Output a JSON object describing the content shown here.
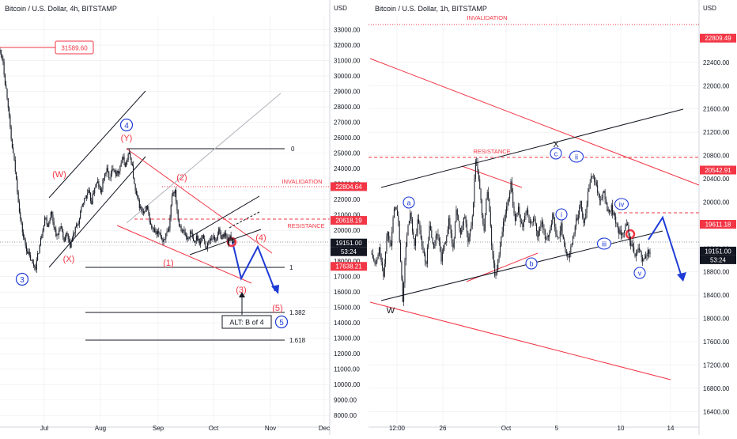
{
  "chart_data": [
    {
      "type": "candlestick",
      "title": "Bitcoin / U.S. Dollar, 4h, BITSTAMP",
      "axis_unit": "USD",
      "x_ticks": [
        "Jul",
        "Aug",
        "Sep",
        "Oct",
        "Nov",
        "Dec"
      ],
      "y_ticks": [
        "33000.00",
        "32000.00",
        "31000.00",
        "30000.00",
        "29000.00",
        "28000.00",
        "27000.00",
        "26000.00",
        "25000.00",
        "24000.00",
        "23000.00",
        "22000.00",
        "21000.00",
        "20000.00",
        "19000.00",
        "18000.00",
        "17000.00",
        "16000.00",
        "15000.00",
        "14000.00",
        "13000.00",
        "12000.00",
        "11000.00",
        "10000.00",
        "9000.00",
        "8000.00"
      ],
      "ylim": [
        7500,
        33900
      ],
      "price_path": [
        [
          0,
          31600
        ],
        [
          2,
          31000
        ],
        [
          3,
          29800
        ],
        [
          5,
          28400
        ],
        [
          7,
          26000
        ],
        [
          9,
          24600
        ],
        [
          11,
          22800
        ],
        [
          13,
          20800
        ],
        [
          15,
          19600
        ],
        [
          17,
          18800
        ],
        [
          19,
          18300
        ],
        [
          21,
          17800
        ],
        [
          23,
          17640
        ],
        [
          25,
          18700
        ],
        [
          27,
          19800
        ],
        [
          29,
          20900
        ],
        [
          31,
          20300
        ],
        [
          33,
          21200
        ],
        [
          35,
          20200
        ],
        [
          37,
          19500
        ],
        [
          39,
          20400
        ],
        [
          41,
          19200
        ],
        [
          43,
          19800
        ],
        [
          45,
          18900
        ],
        [
          47,
          19600
        ],
        [
          49,
          20200
        ],
        [
          51,
          20600
        ],
        [
          53,
          21700
        ],
        [
          55,
          22100
        ],
        [
          57,
          22500
        ],
        [
          59,
          21800
        ],
        [
          61,
          22800
        ],
        [
          63,
          23100
        ],
        [
          65,
          22400
        ],
        [
          67,
          23500
        ],
        [
          69,
          23900
        ],
        [
          71,
          23300
        ],
        [
          73,
          24200
        ],
        [
          75,
          23600
        ],
        [
          77,
          24000
        ],
        [
          79,
          24700
        ],
        [
          81,
          24200
        ],
        [
          83,
          25000
        ],
        [
          85,
          24400
        ],
        [
          87,
          22600
        ],
        [
          89,
          21900
        ],
        [
          91,
          21300
        ],
        [
          93,
          21000
        ],
        [
          95,
          21600
        ],
        [
          97,
          20300
        ],
        [
          99,
          20000
        ],
        [
          101,
          19700
        ],
        [
          103,
          19900
        ],
        [
          105,
          19300
        ],
        [
          107,
          19700
        ],
        [
          109,
          19900
        ],
        [
          111,
          22400
        ],
        [
          113,
          22600
        ],
        [
          115,
          20600
        ],
        [
          117,
          20100
        ],
        [
          119,
          19800
        ],
        [
          121,
          19400
        ],
        [
          123,
          19900
        ],
        [
          125,
          19100
        ],
        [
          127,
          19600
        ],
        [
          129,
          19200
        ],
        [
          131,
          19700
        ],
        [
          133,
          18800
        ],
        [
          135,
          19400
        ],
        [
          137,
          19600
        ],
        [
          139,
          19300
        ],
        [
          141,
          20000
        ],
        [
          143,
          19500
        ],
        [
          145,
          19800
        ],
        [
          147,
          19300
        ],
        [
          149,
          19600
        ],
        [
          151,
          19151
        ]
      ],
      "price_labels": [
        {
          "text": "22804.64",
          "value": 22804.64,
          "color": "#f23645"
        },
        {
          "text": "20618.19",
          "value": 20618.19,
          "color": "#f23645"
        },
        {
          "text": "19151.00",
          "value": 19151,
          "color": "#131722"
        },
        {
          "text": "53:24",
          "value": 19151,
          "color": "#131722"
        },
        {
          "text": "17638.21",
          "value": 17638.21,
          "color": "#f23645"
        }
      ],
      "annotations": {
        "high_label": "31589.60",
        "invalidation": "INVALIDATION",
        "resistance": "RESISTANCE",
        "fib_0": "0",
        "fib_1": "1",
        "fib_1382": "1.382",
        "fib_1618": "1.618",
        "alt_box": "ALT: B of 4",
        "waves_blue": [
          "3",
          "4",
          "5"
        ],
        "waves_red": [
          "(Y)",
          "(W)",
          "(X)",
          "(2)",
          "(1)",
          "(3)",
          "(4)",
          "(5)"
        ]
      }
    },
    {
      "type": "candlestick",
      "title": "Bitcoin / U.S. Dollar, 1h, BITSTAMP",
      "axis_unit": "USD",
      "x_ticks": [
        "12:00",
        "26",
        "Oct",
        "5",
        "10",
        "14"
      ],
      "y_ticks": [
        "22400.00",
        "22000.00",
        "21600.00",
        "21200.00",
        "20800.00",
        "20400.00",
        "20000.00",
        "19600.00",
        "19200.00",
        "18800.00",
        "18400.00",
        "18000.00",
        "17600.00",
        "17200.00",
        "16800.00",
        "16400.00"
      ],
      "ylim": [
        16200,
        23200
      ],
      "price_path": [
        [
          0,
          19100
        ],
        [
          2,
          18900
        ],
        [
          4,
          19200
        ],
        [
          6,
          18700
        ],
        [
          8,
          19500
        ],
        [
          10,
          19300
        ],
        [
          12,
          20000
        ],
        [
          14,
          19600
        ],
        [
          16,
          18300
        ],
        [
          18,
          19400
        ],
        [
          20,
          19800
        ],
        [
          22,
          19200
        ],
        [
          24,
          19700
        ],
        [
          26,
          19300
        ],
        [
          28,
          18900
        ],
        [
          30,
          19600
        ],
        [
          32,
          19200
        ],
        [
          34,
          19500
        ],
        [
          36,
          19000
        ],
        [
          38,
          19300
        ],
        [
          40,
          19700
        ],
        [
          42,
          19200
        ],
        [
          44,
          19900
        ],
        [
          46,
          19400
        ],
        [
          48,
          19800
        ],
        [
          50,
          19300
        ],
        [
          52,
          19700
        ],
        [
          54,
          20800
        ],
        [
          56,
          20200
        ],
        [
          58,
          19500
        ],
        [
          60,
          20300
        ],
        [
          62,
          19300
        ],
        [
          64,
          18700
        ],
        [
          66,
          19100
        ],
        [
          68,
          19600
        ],
        [
          70,
          19900
        ],
        [
          72,
          20300
        ],
        [
          74,
          19700
        ],
        [
          76,
          19900
        ],
        [
          78,
          19500
        ],
        [
          80,
          19900
        ],
        [
          82,
          19600
        ],
        [
          84,
          19800
        ],
        [
          86,
          19400
        ],
        [
          88,
          19700
        ],
        [
          90,
          19300
        ],
        [
          92,
          19500
        ],
        [
          94,
          19800
        ],
        [
          96,
          19300
        ],
        [
          98,
          19600
        ],
        [
          100,
          19200
        ],
        [
          102,
          19000
        ],
        [
          104,
          19400
        ],
        [
          106,
          19700
        ],
        [
          108,
          20000
        ],
        [
          110,
          19600
        ],
        [
          112,
          20200
        ],
        [
          114,
          20500
        ],
        [
          116,
          20350
        ],
        [
          118,
          20000
        ],
        [
          120,
          20200
        ],
        [
          122,
          19800
        ],
        [
          124,
          19900
        ],
        [
          126,
          19700
        ],
        [
          128,
          19500
        ],
        [
          130,
          19400
        ],
        [
          132,
          19600
        ],
        [
          134,
          19300
        ],
        [
          136,
          19100
        ],
        [
          138,
          19200
        ],
        [
          140,
          19000
        ],
        [
          142,
          19100
        ],
        [
          144,
          19151
        ]
      ],
      "price_labels": [
        {
          "text": "22809.49",
          "value": 22809.49,
          "color": "#f23645"
        },
        {
          "text": "20542.91",
          "value": 20542.91,
          "color": "#f23645"
        },
        {
          "text": "19611.18",
          "value": 19611.18,
          "color": "#f23645"
        },
        {
          "text": "19151.00",
          "value": 19151,
          "color": "#131722"
        },
        {
          "text": "53:24",
          "value": 19151,
          "color": "#131722"
        }
      ],
      "annotations": {
        "invalidation": "INVALIDATION",
        "resistance": "RESISTANCE",
        "wave_X": "X",
        "wave_W": "W",
        "waves_blue": [
          "a",
          "b",
          "c",
          "i",
          "ii",
          "iii",
          "iv",
          "v"
        ]
      }
    }
  ],
  "colors": {
    "up": "#26a69a",
    "down": "#ef5350",
    "red": "#f23645",
    "blue": "#1e3bd6",
    "line": "#131722",
    "grid": "#ececec"
  }
}
